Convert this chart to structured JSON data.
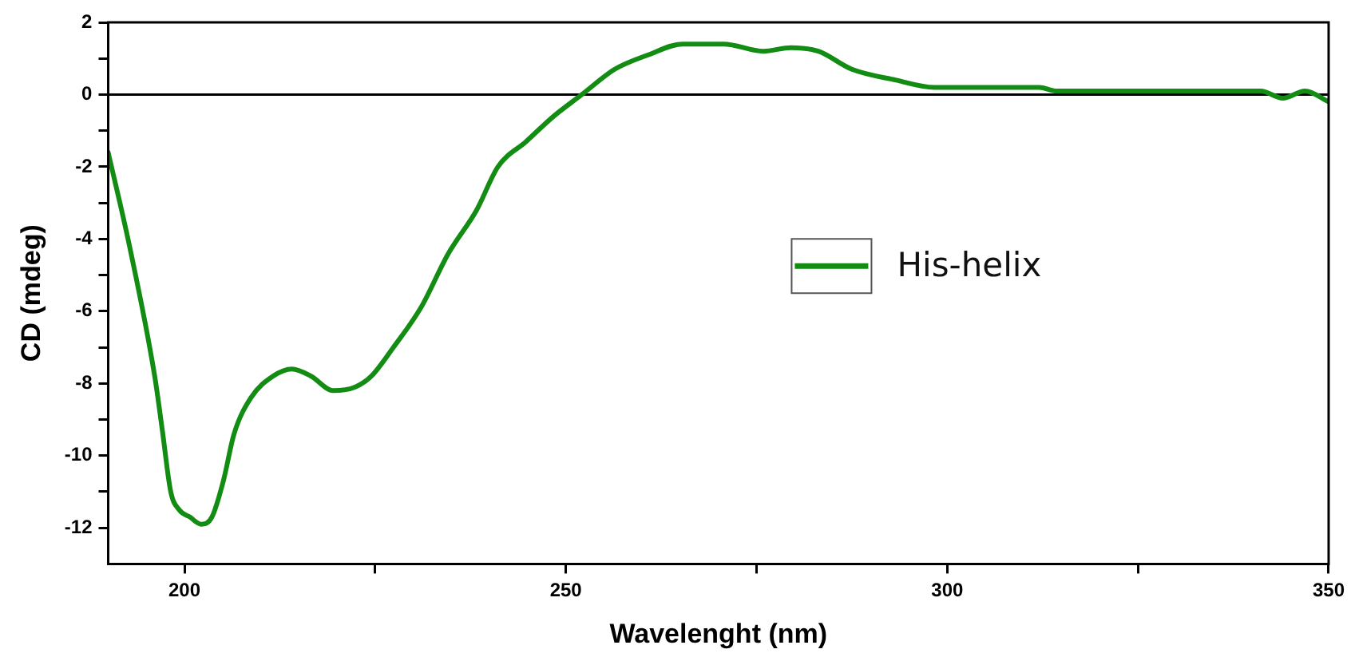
{
  "chart_data": {
    "type": "line",
    "xlabel": "Wavelenght (nm)",
    "ylabel": "CD (mdeg)",
    "x": [
      190,
      192.8,
      196.1,
      197.1,
      198.2,
      199.3,
      200.7,
      202.2,
      203.6,
      205.1,
      206.5,
      208.7,
      211.6,
      214.1,
      216.6,
      219.5,
      222.4,
      224.5,
      227.4,
      231,
      234.6,
      238.3,
      241.1,
      244.8,
      248.4,
      252.1,
      256.4,
      260.8,
      265.3,
      270.7,
      275.9,
      279.5,
      283.1,
      287.5,
      293.3,
      298.3,
      307,
      312.1,
      314.2,
      321.6,
      328.8,
      341.1,
      344,
      346.9,
      350
    ],
    "series": [
      {
        "name": "His-helix",
        "color": "#128c12",
        "values": [
          -1.6,
          -4.2,
          -7.8,
          -9.3,
          -11,
          -11.5,
          -11.7,
          -11.9,
          -11.7,
          -10.7,
          -9.4,
          -8.4,
          -7.8,
          -7.6,
          -7.8,
          -8.2,
          -8.1,
          -7.8,
          -7,
          -5.9,
          -4.4,
          -3.2,
          -2,
          -1.3,
          -0.6,
          0,
          0.7,
          1.1,
          1.4,
          1.4,
          1.2,
          1.3,
          1.2,
          0.7,
          0.4,
          0.2,
          0.2,
          0.2,
          0.1,
          0.1,
          0.1,
          0.1,
          -0.1,
          0.1,
          -0.2
        ]
      }
    ],
    "xlim": [
      190,
      350
    ],
    "ylim": [
      -13,
      2
    ],
    "xticks": [
      200,
      {
        "value": 225,
        "label": null
      },
      250,
      {
        "value": 275,
        "label": null
      },
      300,
      {
        "value": 325,
        "label": null
      },
      350
    ],
    "yticks": [
      2,
      {
        "value": 1,
        "label": null
      },
      0,
      {
        "value": -1,
        "label": null
      },
      -2,
      {
        "value": -3,
        "label": null
      },
      -4,
      {
        "value": -5,
        "label": null
      },
      -6,
      {
        "value": -7,
        "label": null
      },
      -8,
      {
        "value": -9,
        "label": null
      },
      -10,
      {
        "value": -11,
        "label": null
      },
      -12
    ],
    "ref_lines": [
      {
        "axis": "y",
        "value": 0,
        "color": "#000000"
      }
    ],
    "legend": "right",
    "marker": "none",
    "line_style": "solid"
  }
}
